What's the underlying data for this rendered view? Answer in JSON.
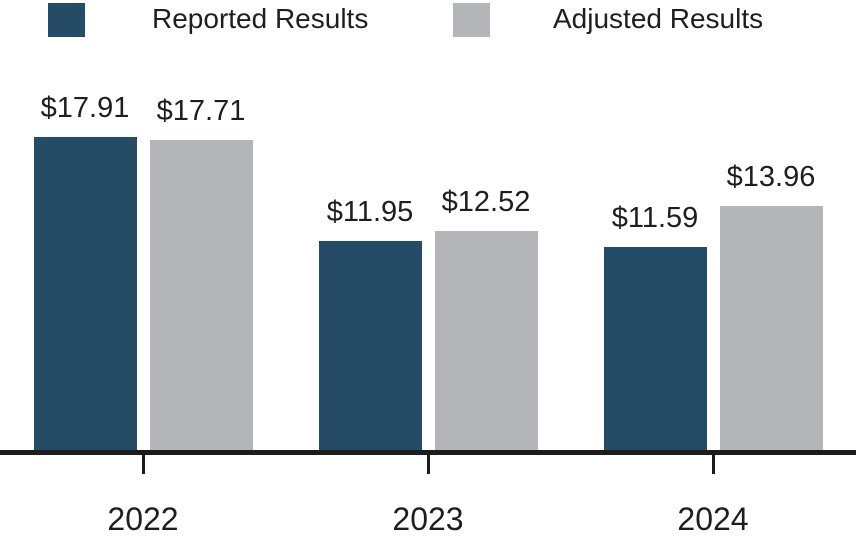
{
  "chart_data": {
    "type": "bar",
    "title": "",
    "categories": [
      "2022",
      "2023",
      "2024"
    ],
    "series": [
      {
        "name": "Reported Results",
        "color": "#254B66",
        "values": [
          17.91,
          11.95,
          11.59
        ],
        "value_labels": [
          "$17.91",
          "$11.95",
          "$11.59"
        ]
      },
      {
        "name": "Adjusted Results",
        "color": "#B3B5B8",
        "values": [
          17.71,
          12.52,
          13.96
        ],
        "value_labels": [
          "$17.71",
          "$12.52",
          "$13.96"
        ]
      }
    ],
    "ylim": [
      0,
      25.7
    ],
    "grid": false,
    "legend_position": "top",
    "axis_color": "#1C1C1C",
    "text_color": "#1E1E1E",
    "background": "#FFFFFF"
  }
}
